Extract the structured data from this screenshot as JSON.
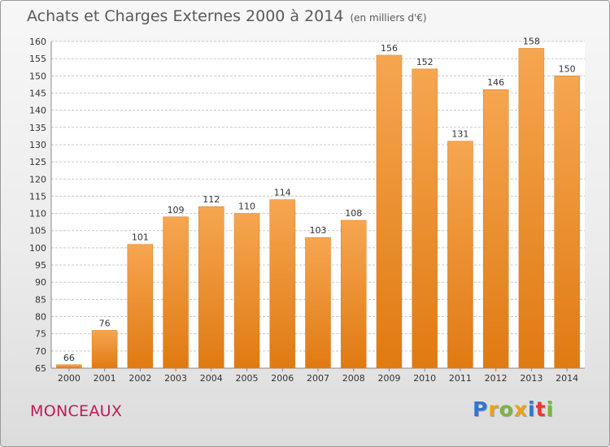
{
  "header": {
    "title": "Achats et Charges Externes 2000 à 2014",
    "subtitle": "(en milliers d'€)"
  },
  "footer": {
    "place": "MONCEAUX",
    "brand": {
      "letters": [
        "P",
        "r",
        "o",
        "x",
        "i",
        "t",
        "i"
      ],
      "colors": [
        "#2f77d1",
        "#e8a317",
        "#7cb342",
        "#e8a317",
        "#2f77d1",
        "#e53935",
        "#7cb342"
      ]
    }
  },
  "colors": {
    "bar_top": "#f6a650",
    "bar_bottom": "#e07a12",
    "bar_edge": "#d97a1e",
    "grid": "#c8c8c8",
    "axis_text": "#333333"
  },
  "chart_data": {
    "type": "bar",
    "title": "Achats et Charges Externes 2000 à 2014",
    "subtitle": "(en milliers d'€)",
    "categories": [
      "2000",
      "2001",
      "2002",
      "2003",
      "2004",
      "2005",
      "2006",
      "2007",
      "2008",
      "2009",
      "2010",
      "2011",
      "2012",
      "2013",
      "2014"
    ],
    "values": [
      66,
      76,
      101,
      109,
      112,
      110,
      114,
      103,
      108,
      156,
      152,
      131,
      146,
      158,
      150
    ],
    "ylim": [
      65,
      160
    ],
    "yticks": [
      65,
      70,
      75,
      80,
      85,
      90,
      95,
      100,
      105,
      110,
      115,
      120,
      125,
      130,
      135,
      140,
      145,
      150,
      155,
      160
    ],
    "grid": true,
    "xlabel": "",
    "ylabel": ""
  }
}
